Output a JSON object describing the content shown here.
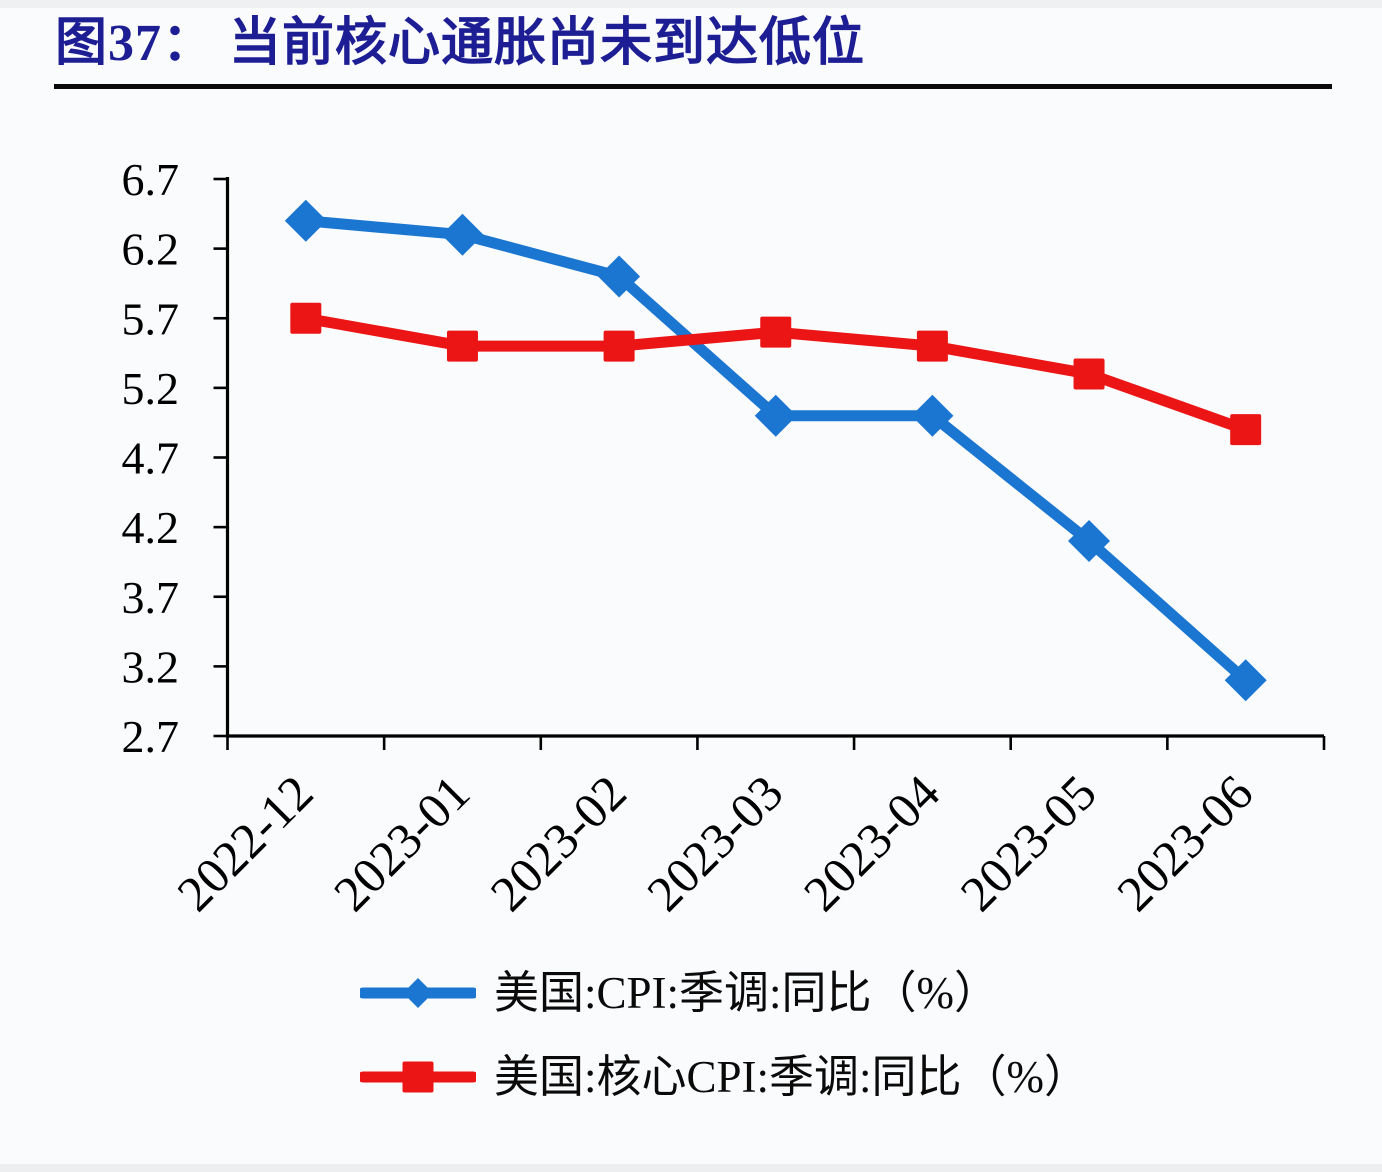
{
  "header": {
    "title": "图37： 当前核心通胀尚未到达低位"
  },
  "chart_data": {
    "type": "line",
    "title": "图37： 当前核心通胀尚未到达低位",
    "categories": [
      "2022-12",
      "2023-01",
      "2023-02",
      "2023-03",
      "2023-04",
      "2023-05",
      "2023-06"
    ],
    "series": [
      {
        "name": "美国:CPI:季调:同比（%）",
        "marker": "diamond",
        "color": "#1b76d1",
        "values": [
          6.4,
          6.3,
          6.0,
          5.0,
          5.0,
          4.1,
          3.1
        ]
      },
      {
        "name": "美国:核心CPI:季调:同比（%）",
        "marker": "square",
        "color": "#ec1515",
        "values": [
          5.7,
          5.5,
          5.5,
          5.6,
          5.5,
          5.3,
          4.9
        ]
      }
    ],
    "ylim": [
      2.7,
      6.7
    ],
    "ytick_step": 0.5,
    "ytick_labels": [
      "6.7",
      "6.2",
      "5.7",
      "5.2",
      "4.7",
      "4.2",
      "3.7",
      "3.2",
      "2.7"
    ],
    "grid": false,
    "legend_position": "bottom-left",
    "x_label_rotation_deg": -45
  },
  "colors": {
    "title": "#1d1d94",
    "axis": "#000000",
    "tick_text": "#000000",
    "divider": "#0b0b0b",
    "background": "#fafbfc",
    "series_blue": "#1b76d1",
    "series_red": "#ec1515"
  }
}
